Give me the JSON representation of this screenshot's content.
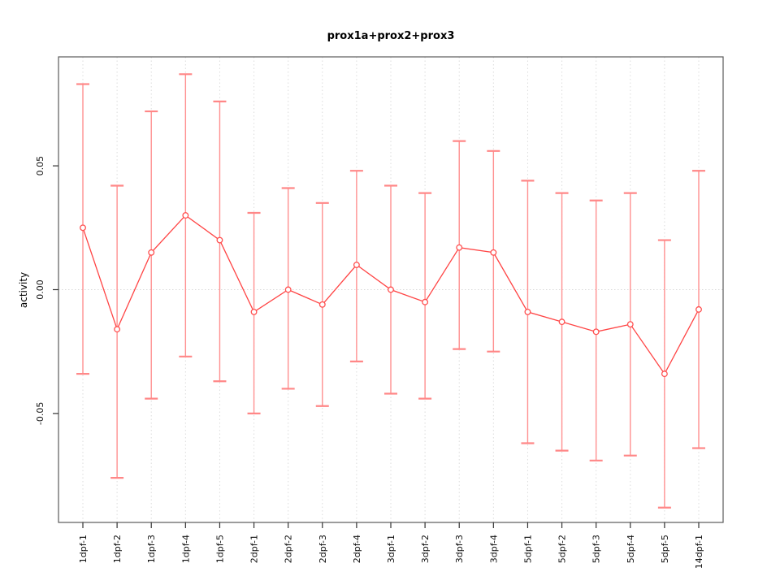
{
  "window": {
    "background": "#ffffff"
  },
  "chart_data": {
    "type": "line",
    "title": "prox1a+prox2+prox3",
    "xlabel": "",
    "ylabel": "activity",
    "categories": [
      "1dpf-1",
      "1dpf-2",
      "1dpf-3",
      "1dpf-4",
      "1dpf-5",
      "2dpf-1",
      "2dpf-2",
      "2dpf-3",
      "2dpf-4",
      "3dpf-1",
      "3dpf-2",
      "3dpf-3",
      "3dpf-4",
      "5dpf-1",
      "5dpf-2",
      "5dpf-3",
      "5dpf-4",
      "5dpf-5",
      "14dpf-1"
    ],
    "series": [
      {
        "name": "activity",
        "values": [
          0.025,
          -0.016,
          0.015,
          0.03,
          0.02,
          -0.009,
          0.0,
          -0.006,
          0.01,
          0.0,
          -0.005,
          0.017,
          0.015,
          -0.009,
          -0.013,
          -0.017,
          -0.014,
          -0.034,
          -0.008
        ],
        "lower": [
          -0.034,
          -0.076,
          -0.044,
          -0.027,
          -0.037,
          -0.05,
          -0.04,
          -0.047,
          -0.029,
          -0.042,
          -0.044,
          -0.024,
          -0.025,
          -0.062,
          -0.065,
          -0.069,
          -0.067,
          -0.088,
          -0.064
        ],
        "upper": [
          0.083,
          0.042,
          0.072,
          0.087,
          0.076,
          0.031,
          0.041,
          0.035,
          0.048,
          0.042,
          0.039,
          0.06,
          0.056,
          0.044,
          0.039,
          0.036,
          0.039,
          0.02,
          0.048
        ]
      }
    ],
    "yticks": [
      0.05,
      0.0,
      -0.05
    ],
    "ytick_labels": [
      "0.05",
      "0.00",
      "-0.05"
    ],
    "ylim": [
      -0.094,
      0.094
    ],
    "grid": {
      "zero_line_dotted": true,
      "vertical_dotted_per_category": true
    },
    "legend_position": "none",
    "marker": "open-circle",
    "colors": {
      "errorbar": "#ff9090",
      "errorbar_cap": "#ff8787",
      "line": "#ff4444",
      "point": "#ff5050",
      "grid": "#dcdcdc",
      "zero_line": "#d8d8d8",
      "box": "#5a5a5a",
      "tick": "#333333",
      "text": "#000000"
    }
  }
}
